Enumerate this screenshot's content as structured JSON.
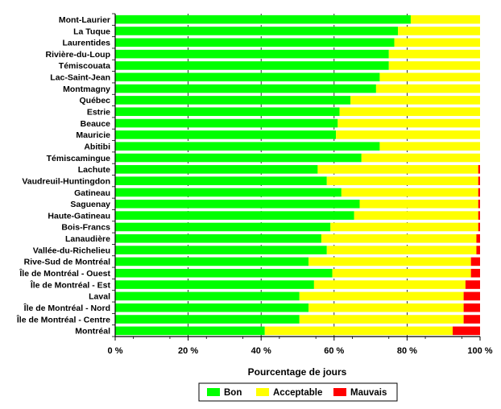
{
  "chart_data": {
    "type": "bar",
    "orientation": "horizontal",
    "stacked": true,
    "title": "",
    "xlabel": "Pourcentage de jours",
    "ylabel": "",
    "xlim": [
      0,
      100
    ],
    "x_ticks": [
      0,
      20,
      40,
      60,
      80,
      100
    ],
    "x_tick_labels": [
      "0 %",
      "20 %",
      "40 %",
      "60 %",
      "80 %",
      "100 %"
    ],
    "grid": "vertical dashed",
    "legend_position": "bottom",
    "categories": [
      "Mont-Laurier",
      "La Tuque",
      "Laurentides",
      "Rivière-du-Loup",
      "Témiscouata",
      "Lac-Saint-Jean",
      "Montmagny",
      "Québec",
      "Estrie",
      "Beauce",
      "Mauricie",
      "Abitibi",
      "Témiscamingue",
      "Lachute",
      "Vaudreuil-Huntingdon",
      "Gatineau",
      "Saguenay",
      "Haute-Gatineau",
      "Bois-Francs",
      "Lanaudière",
      "Vallée-du-Richelieu",
      "Rive-Sud de Montréal",
      "Île de Montréal - Ouest",
      "Île de Montréal - Est",
      "Laval",
      "Île de Montréal - Nord",
      "Île de Montréal - Centre",
      "Montréal"
    ],
    "series": [
      {
        "name": "Bon",
        "color": "#00ff00",
        "values": [
          81,
          77.5,
          76.5,
          75,
          75,
          72.5,
          71.5,
          64.5,
          61.5,
          61,
          60.5,
          72.5,
          67.5,
          55.5,
          58,
          62,
          67,
          65.5,
          59,
          56.5,
          58,
          53,
          59.5,
          54.5,
          50.5,
          53,
          50.5,
          41
        ]
      },
      {
        "name": "Acceptable",
        "color": "#ffff00",
        "values": [
          19,
          22.5,
          23.5,
          25,
          25,
          27.5,
          28.5,
          35.5,
          38.5,
          39,
          39.5,
          27.5,
          32.5,
          44,
          41.5,
          37.5,
          32.5,
          34,
          40.5,
          42.5,
          41,
          44.5,
          38,
          41.5,
          45,
          42.5,
          45,
          51.5
        ]
      },
      {
        "name": "Mauvais",
        "color": "#ff0000",
        "values": [
          0,
          0,
          0,
          0,
          0,
          0,
          0,
          0,
          0,
          0,
          0,
          0,
          0,
          0.5,
          0.5,
          0.5,
          0.5,
          0.5,
          0.5,
          1,
          1,
          2.5,
          2.5,
          4,
          4.5,
          4.5,
          4.5,
          7.5
        ]
      }
    ]
  }
}
